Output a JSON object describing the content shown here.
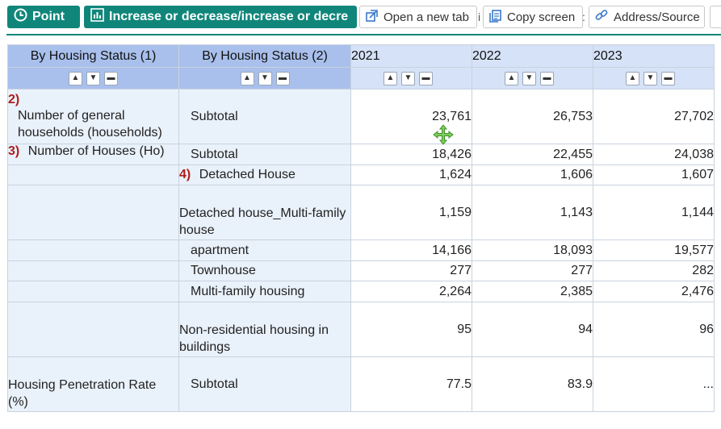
{
  "toolbar": {
    "point_label": "Point",
    "increase_label": "Increase or decrease/increase or decre",
    "open_tab_label": "Open a new tab",
    "copy_screen_label": "Copy screen",
    "address_label": "Address/Source"
  },
  "table": {
    "col1_header": "By Housing Status (1)",
    "col2_header": "By Housing Status (2)",
    "years": [
      "2021",
      "2022",
      "2023"
    ],
    "rows": [
      {
        "num": "2)",
        "label1": "Number of general households (households)",
        "label2": "Subtotal",
        "values": [
          "23,761",
          "26,753",
          "27,702"
        ]
      },
      {
        "num": "3)",
        "label1": "Number of Houses (Ho)",
        "label2": "Subtotal",
        "values": [
          "18,426",
          "22,455",
          "24,038"
        ]
      },
      {
        "num2": "4)",
        "label2": "Detached House",
        "values": [
          "1,624",
          "1,606",
          "1,607"
        ]
      },
      {
        "label2": "Detached house_Multi-family house",
        "values": [
          "1,159",
          "1,143",
          "1,144"
        ]
      },
      {
        "label2": "apartment",
        "values": [
          "14,166",
          "18,093",
          "19,577"
        ]
      },
      {
        "label2": "Townhouse",
        "values": [
          "277",
          "277",
          "282"
        ]
      },
      {
        "label2": "Multi-family housing",
        "values": [
          "2,264",
          "2,385",
          "2,476"
        ]
      },
      {
        "label2": "Non-residential housing in buildings",
        "values": [
          "95",
          "94",
          "96"
        ]
      },
      {
        "label1": "Housing Penetration Rate (%)",
        "label2": "Subtotal",
        "values": [
          "77.5",
          "83.9",
          "..."
        ]
      }
    ]
  }
}
